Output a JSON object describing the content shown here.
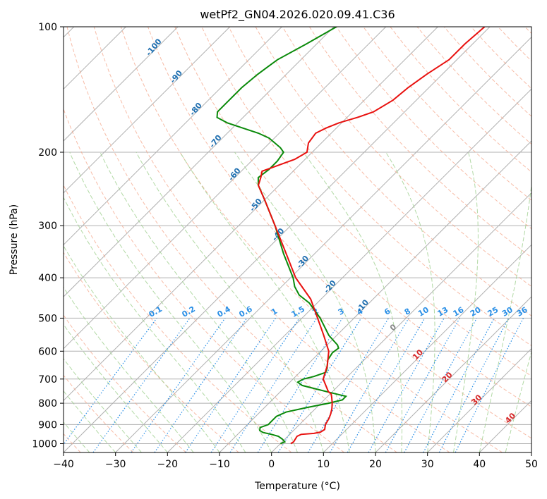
{
  "chart_data": {
    "type": "skew-t",
    "title": "wetPf2_GN04.2026.020.09.41.C36",
    "xlabel": "Temperature (°C)",
    "ylabel": "Pressure (hPa)",
    "xlim": [
      -40,
      50
    ],
    "ylim": [
      1050,
      100
    ],
    "x_ticks": [
      -40,
      -30,
      -20,
      -10,
      0,
      10,
      20,
      30,
      40,
      50
    ],
    "y_ticks": [
      100,
      200,
      300,
      400,
      500,
      600,
      700,
      800,
      900,
      1000
    ],
    "colors": {
      "temperature": "#e8110f",
      "dewpoint": "#0a8a0a",
      "isotherm": "#b0b0b0",
      "dry_adiabat": "#f4a58a",
      "moist_adiabat": "#9fd08f",
      "mixing_ratio": "#2a8fe6"
    },
    "temperature_profile": [
      {
        "p": 1000,
        "t": 2.0
      },
      {
        "p": 990,
        "t": 2.2
      },
      {
        "p": 975,
        "t": 2.0
      },
      {
        "p": 960,
        "t": 1.8
      },
      {
        "p": 950,
        "t": 2.2
      },
      {
        "p": 945,
        "t": 4.5
      },
      {
        "p": 938,
        "t": 5.5
      },
      {
        "p": 925,
        "t": 5.8
      },
      {
        "p": 900,
        "t": 5.0
      },
      {
        "p": 870,
        "t": 4.5
      },
      {
        "p": 850,
        "t": 4.0
      },
      {
        "p": 825,
        "t": 3.2
      },
      {
        "p": 800,
        "t": 2.2
      },
      {
        "p": 775,
        "t": 1.0
      },
      {
        "p": 760,
        "t": 0.2
      },
      {
        "p": 750,
        "t": -0.8
      },
      {
        "p": 700,
        "t": -4.2
      },
      {
        "p": 650,
        "t": -6.0
      },
      {
        "p": 600,
        "t": -8.5
      },
      {
        "p": 550,
        "t": -12.5
      },
      {
        "p": 500,
        "t": -17.0
      },
      {
        "p": 450,
        "t": -22.0
      },
      {
        "p": 400,
        "t": -29.0
      },
      {
        "p": 350,
        "t": -35.5
      },
      {
        "p": 300,
        "t": -43.0
      },
      {
        "p": 260,
        "t": -50.0
      },
      {
        "p": 240,
        "t": -54.0
      },
      {
        "p": 230,
        "t": -55.0
      },
      {
        "p": 222,
        "t": -56.0
      },
      {
        "p": 215,
        "t": -54.0
      },
      {
        "p": 208,
        "t": -52.0
      },
      {
        "p": 200,
        "t": -51.0
      },
      {
        "p": 190,
        "t": -52.5
      },
      {
        "p": 180,
        "t": -53.0
      },
      {
        "p": 175,
        "t": -52.0
      },
      {
        "p": 170,
        "t": -50.5
      },
      {
        "p": 165,
        "t": -48.0
      },
      {
        "p": 160,
        "t": -46.0
      },
      {
        "p": 150,
        "t": -44.5
      },
      {
        "p": 140,
        "t": -44.0
      },
      {
        "p": 130,
        "t": -43.0
      },
      {
        "p": 120,
        "t": -41.5
      },
      {
        "p": 110,
        "t": -41.5
      },
      {
        "p": 100,
        "t": -41.0
      }
    ],
    "dewpoint_profile": [
      {
        "p": 1000,
        "t": 0.0
      },
      {
        "p": 990,
        "t": 0.5
      },
      {
        "p": 975,
        "t": -0.5
      },
      {
        "p": 960,
        "t": -1.8
      },
      {
        "p": 950,
        "t": -3.5
      },
      {
        "p": 940,
        "t": -5.5
      },
      {
        "p": 930,
        "t": -6.5
      },
      {
        "p": 915,
        "t": -7.0
      },
      {
        "p": 900,
        "t": -6.0
      },
      {
        "p": 880,
        "t": -6.0
      },
      {
        "p": 860,
        "t": -6.0
      },
      {
        "p": 840,
        "t": -5.0
      },
      {
        "p": 820,
        "t": -2.0
      },
      {
        "p": 800,
        "t": 1.5
      },
      {
        "p": 785,
        "t": 3.5
      },
      {
        "p": 770,
        "t": 3.5
      },
      {
        "p": 755,
        "t": 0.0
      },
      {
        "p": 740,
        "t": -3.5
      },
      {
        "p": 725,
        "t": -7.0
      },
      {
        "p": 712,
        "t": -8.5
      },
      {
        "p": 700,
        "t": -8.0
      },
      {
        "p": 690,
        "t": -6.5
      },
      {
        "p": 675,
        "t": -5.0
      },
      {
        "p": 660,
        "t": -5.5
      },
      {
        "p": 630,
        "t": -7.0
      },
      {
        "p": 605,
        "t": -7.5
      },
      {
        "p": 590,
        "t": -7.2
      },
      {
        "p": 580,
        "t": -8.0
      },
      {
        "p": 550,
        "t": -11.5
      },
      {
        "p": 500,
        "t": -16.5
      },
      {
        "p": 460,
        "t": -21.5
      },
      {
        "p": 440,
        "t": -25.0
      },
      {
        "p": 420,
        "t": -27.5
      },
      {
        "p": 400,
        "t": -29.5
      },
      {
        "p": 350,
        "t": -36.0
      },
      {
        "p": 300,
        "t": -43.0
      },
      {
        "p": 260,
        "t": -50.0
      },
      {
        "p": 240,
        "t": -54.0
      },
      {
        "p": 230,
        "t": -55.5
      },
      {
        "p": 220,
        "t": -55.0
      },
      {
        "p": 210,
        "t": -55.0
      },
      {
        "p": 200,
        "t": -55.5
      },
      {
        "p": 195,
        "t": -57.0
      },
      {
        "p": 185,
        "t": -61.0
      },
      {
        "p": 180,
        "t": -64.0
      },
      {
        "p": 175,
        "t": -68.0
      },
      {
        "p": 170,
        "t": -72.0
      },
      {
        "p": 165,
        "t": -75.0
      },
      {
        "p": 160,
        "t": -76.0
      },
      {
        "p": 150,
        "t": -76.0
      },
      {
        "p": 140,
        "t": -76.0
      },
      {
        "p": 130,
        "t": -75.5
      },
      {
        "p": 120,
        "t": -74.5
      },
      {
        "p": 110,
        "t": -72.0
      },
      {
        "p": 100,
        "t": -69.5
      }
    ],
    "mixing_ratio_labels": [
      "0.1",
      "0.2",
      "0.4",
      "0.6",
      "1",
      "1.5",
      "2",
      "3",
      "4",
      "6",
      "8",
      "10",
      "13",
      "16",
      "20",
      "25",
      "30",
      "36"
    ],
    "mixing_ratio_values": [
      0.1,
      0.2,
      0.4,
      0.6,
      1,
      1.5,
      2,
      3,
      4,
      6,
      8,
      10,
      13,
      16,
      20,
      25,
      30,
      36
    ],
    "dry_adiabat_labels": [
      {
        "text": "-100",
        "t": -100,
        "p": 113
      },
      {
        "text": "-90",
        "t": -90,
        "p": 133
      },
      {
        "text": "-80",
        "t": -80,
        "p": 159
      },
      {
        "text": "-70",
        "t": -70,
        "p": 190
      },
      {
        "text": "-60",
        "t": -60,
        "p": 228
      },
      {
        "text": "-50",
        "t": -50,
        "p": 270
      },
      {
        "text": "-40",
        "t": -40,
        "p": 318
      },
      {
        "text": "-30",
        "t": -30,
        "p": 370
      },
      {
        "text": "-20",
        "t": -20,
        "p": 424
      },
      {
        "text": "-10",
        "t": -10,
        "p": 472
      }
    ],
    "zero_label": {
      "text": "0",
      "t": 0,
      "p": 532
    },
    "moist_adiabat_labels": [
      {
        "text": "10",
        "t": 10,
        "p": 618
      },
      {
        "text": "20",
        "t": 20,
        "p": 700
      },
      {
        "text": "30",
        "t": 30,
        "p": 793
      },
      {
        "text": "40",
        "t": 40,
        "p": 877
      }
    ]
  }
}
